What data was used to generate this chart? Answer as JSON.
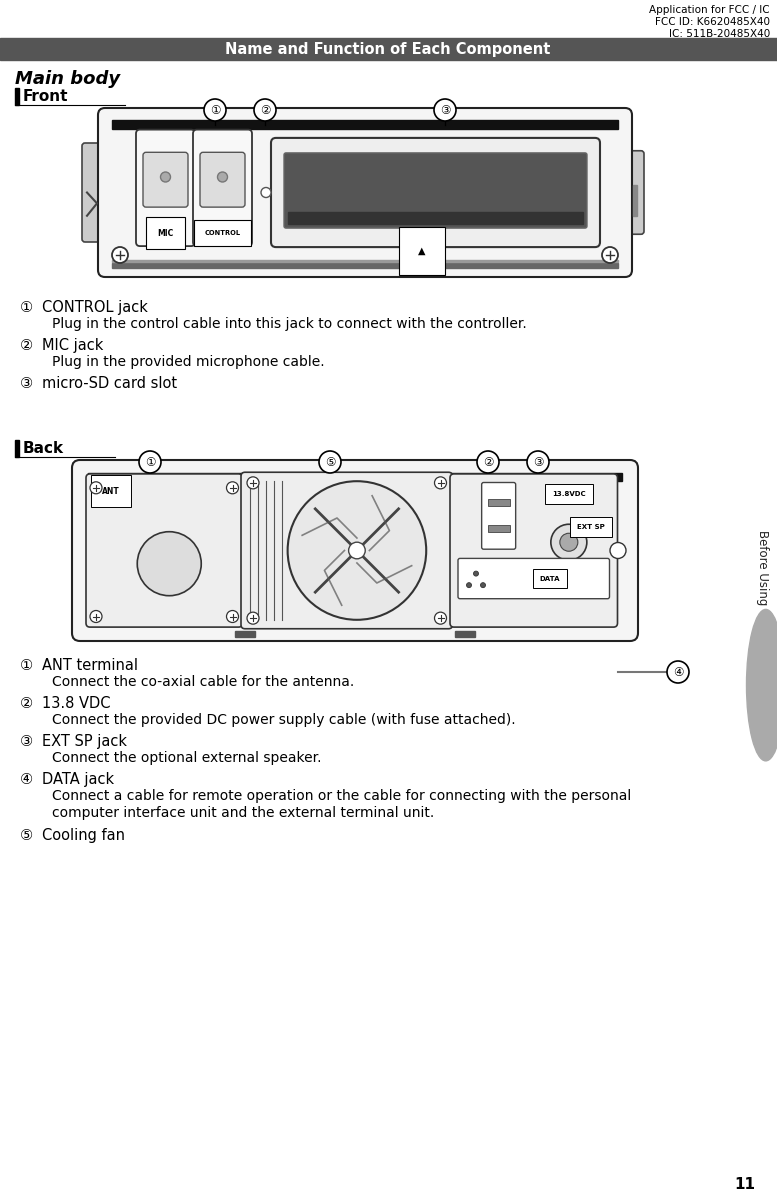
{
  "header_text_lines": [
    "Application for FCC / IC",
    "FCC ID: K6620485X40",
    "IC: 511B-20485X40"
  ],
  "section_title": "Name and Function of Each Component",
  "section_title_bg": "#555555",
  "section_title_color": "#ffffff",
  "main_body_label": "Main body",
  "front_label": "Front",
  "back_label": "Back",
  "front_items": [
    {
      "num": "①",
      "title": "CONTROL jack",
      "desc": "Plug in the control cable into this jack to connect with the controller."
    },
    {
      "num": "②",
      "title": "MIC jack",
      "desc": "Plug in the provided microphone cable."
    },
    {
      "num": "③",
      "title": "micro-SD card slot",
      "desc": ""
    }
  ],
  "back_items": [
    {
      "num": "①",
      "title": "ANT terminal",
      "desc": "Connect the co-axial cable for the antenna."
    },
    {
      "num": "②",
      "title": "13.8 VDC",
      "desc": "Connect the provided DC power supply cable (with fuse attached)."
    },
    {
      "num": "③",
      "title": "EXT SP jack",
      "desc": "Connect the optional external speaker."
    },
    {
      "num": "④",
      "title": "DATA jack",
      "desc": "Connect a cable for remote operation or the cable for connecting with the personal\ncomputer interface unit and the external terminal unit."
    },
    {
      "num": "⑤",
      "title": "Cooling fan",
      "desc": ""
    }
  ],
  "side_tab_text": "Before Using",
  "page_number": "11",
  "bg_color": "#ffffff",
  "text_color": "#000000",
  "header_fontsize": 7.5,
  "section_title_fontsize": 10.5,
  "item_fontsize": 10.5,
  "desc_fontsize": 10.0
}
